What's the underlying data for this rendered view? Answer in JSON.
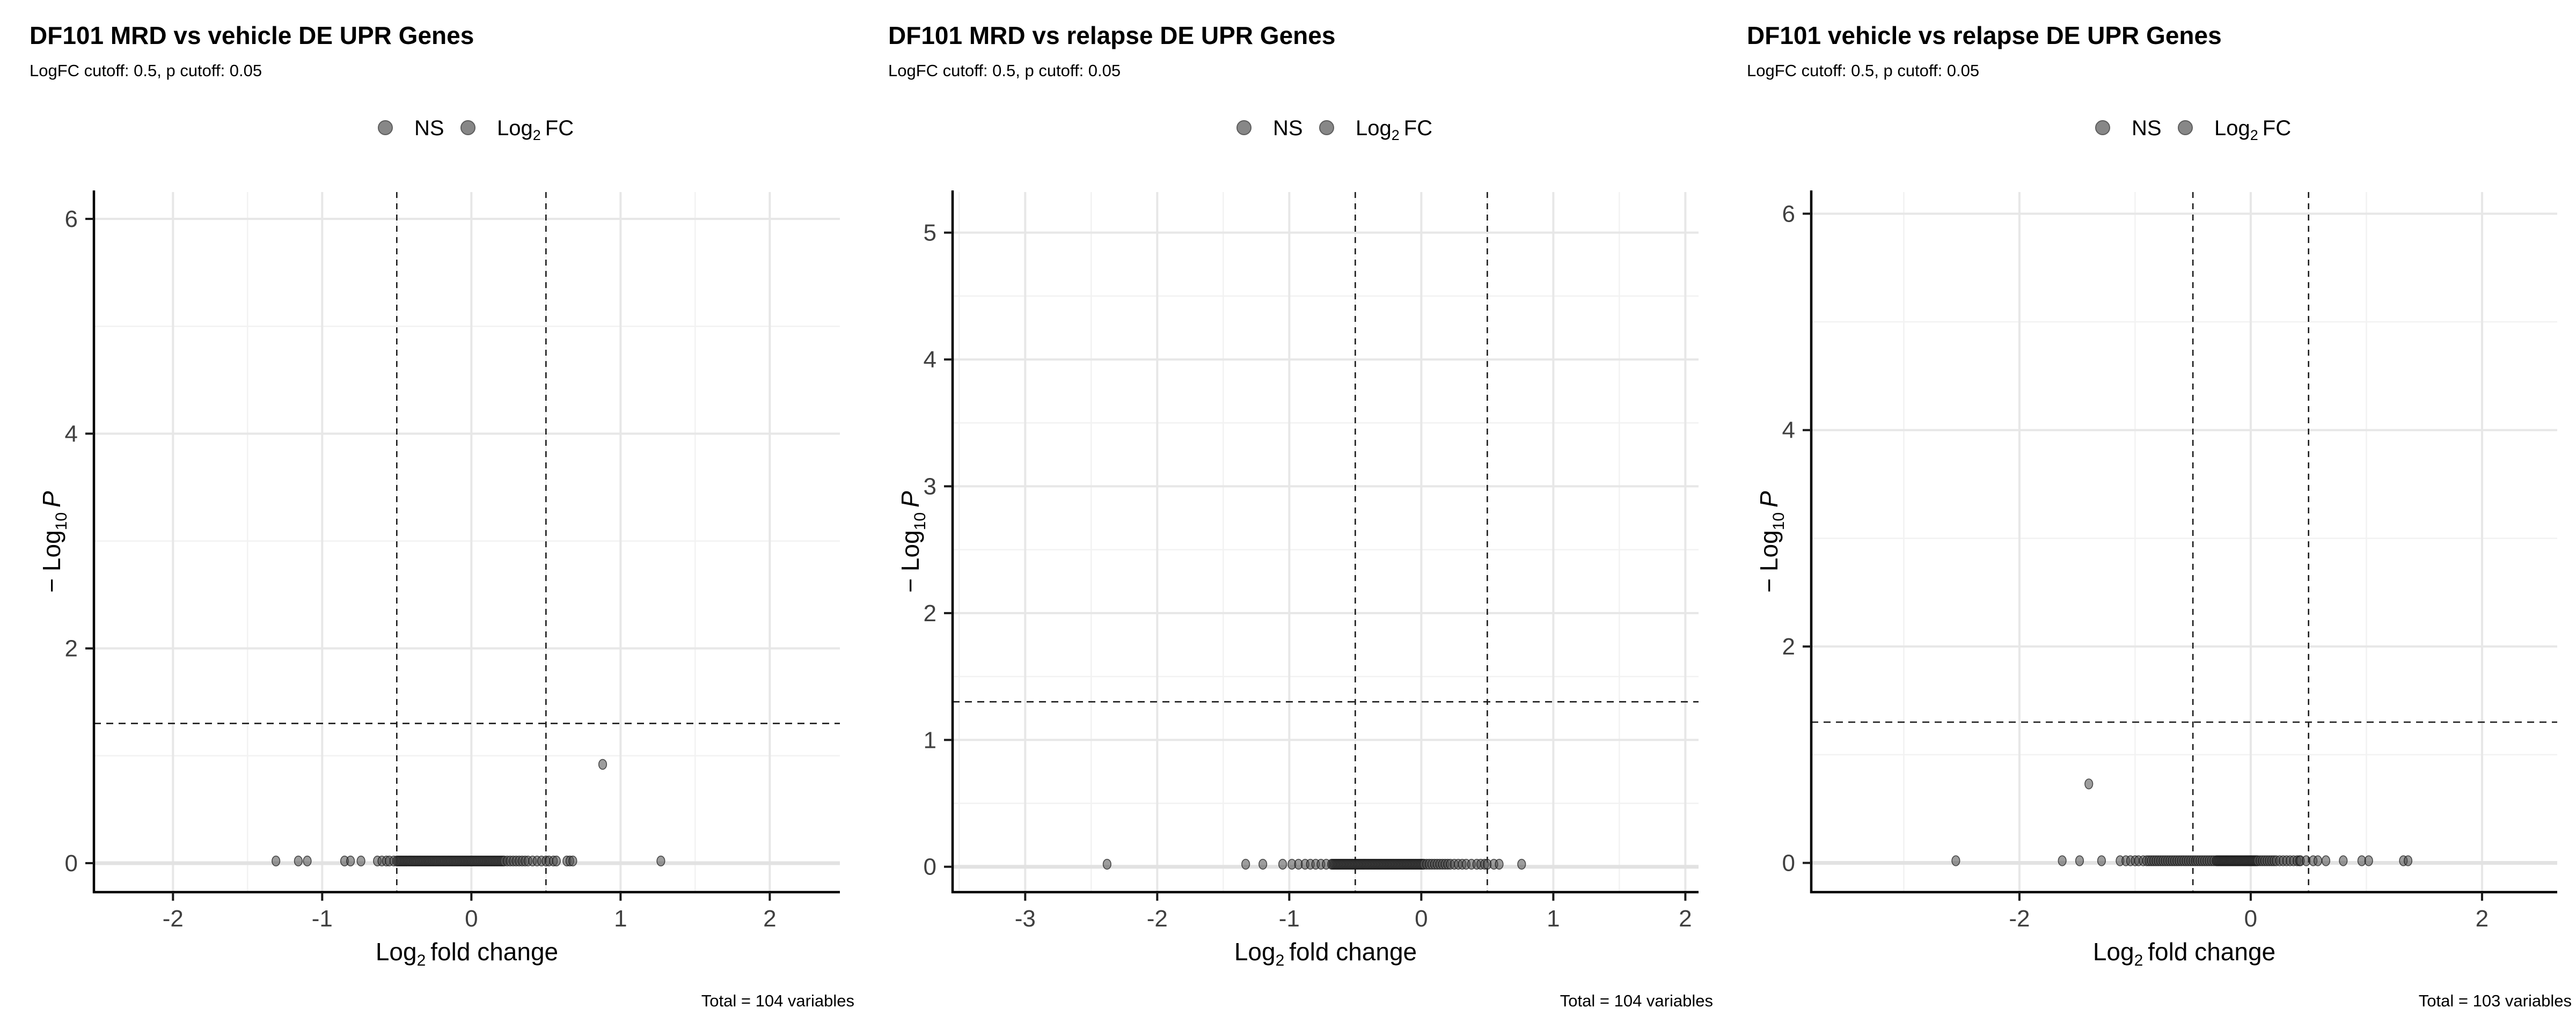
{
  "figure": {
    "background": "#ffffff"
  },
  "colors": {
    "point_fill": "#4d4d4d",
    "point_stroke": "#141414",
    "grid_major": "#e7e7e7",
    "grid_zero": "#e2e2e2",
    "grid_minor": "#f2f2f2",
    "axis_line": "#000000",
    "tick_mark": "#1a1a1a",
    "tick_label": "#404040",
    "dashed_line": "#1a1a1a",
    "legend_dot_fill": "#878787",
    "legend_dot_stroke": "#5e5e5e"
  },
  "legend": {
    "ns": "NS",
    "fc_pre": "Log",
    "fc_sub": "2",
    "fc_post": "FC"
  },
  "axis_titles": {
    "x_pre": "Log",
    "x_sub": "2",
    "x_post": "fold change",
    "y_pre": "− Log",
    "y_sub": "10",
    "y_post": "P"
  },
  "chart_data": [
    {
      "type": "scatter",
      "title": "DF101 MRD vs vehicle DE UPR Genes",
      "subtitle": "LogFC cutoff: 0.5, p cutoff: 0.05",
      "caption": "Total = 104 variables",
      "xlabel": "Log2 fold change",
      "ylabel": "-Log10 P",
      "legend_entries": [
        "NS",
        "Log2 FC"
      ],
      "grid": true,
      "xlim": [
        -2.53,
        2.47
      ],
      "ylim": [
        -0.27,
        6.25
      ],
      "xticks": [
        -2,
        -1,
        0,
        1,
        2
      ],
      "xminor": [
        -1.5,
        -0.5,
        0.5,
        1.5
      ],
      "yticks": [
        0,
        2,
        4,
        6
      ],
      "yminor": [
        1,
        3,
        5
      ],
      "vlines": [
        -0.5,
        0.5
      ],
      "hline": 1.301,
      "points": [
        [
          -1.31,
          0.02
        ],
        [
          -1.16,
          0.02
        ],
        [
          -1.1,
          0.02
        ],
        [
          -0.85,
          0.02
        ],
        [
          -0.81,
          0.02
        ],
        [
          -0.74,
          0.02
        ],
        [
          -0.63,
          0.02
        ],
        [
          -0.6,
          0.02
        ],
        [
          -0.57,
          0.02
        ],
        [
          -0.55,
          0.02
        ],
        [
          -0.52,
          0.02
        ],
        [
          -0.5,
          0.02
        ],
        [
          -0.49,
          0.02
        ],
        [
          -0.48,
          0.02
        ],
        [
          -0.47,
          0.02
        ],
        [
          -0.46,
          0.02
        ],
        [
          -0.45,
          0.02
        ],
        [
          -0.44,
          0.02
        ],
        [
          -0.43,
          0.02
        ],
        [
          -0.42,
          0.02
        ],
        [
          -0.41,
          0.02
        ],
        [
          -0.4,
          0.02
        ],
        [
          -0.39,
          0.02
        ],
        [
          -0.38,
          0.02
        ],
        [
          -0.37,
          0.02
        ],
        [
          -0.36,
          0.02
        ],
        [
          -0.35,
          0.02
        ],
        [
          -0.34,
          0.02
        ],
        [
          -0.33,
          0.02
        ],
        [
          -0.32,
          0.02
        ],
        [
          -0.31,
          0.02
        ],
        [
          -0.3,
          0.02
        ],
        [
          -0.29,
          0.02
        ],
        [
          -0.28,
          0.02
        ],
        [
          -0.27,
          0.02
        ],
        [
          -0.26,
          0.02
        ],
        [
          -0.25,
          0.02
        ],
        [
          -0.24,
          0.02
        ],
        [
          -0.23,
          0.02
        ],
        [
          -0.22,
          0.02
        ],
        [
          -0.21,
          0.02
        ],
        [
          -0.2,
          0.02
        ],
        [
          -0.19,
          0.02
        ],
        [
          -0.18,
          0.02
        ],
        [
          -0.17,
          0.02
        ],
        [
          -0.16,
          0.02
        ],
        [
          -0.15,
          0.02
        ],
        [
          -0.14,
          0.02
        ],
        [
          -0.13,
          0.02
        ],
        [
          -0.12,
          0.02
        ],
        [
          -0.11,
          0.02
        ],
        [
          -0.1,
          0.02
        ],
        [
          -0.09,
          0.02
        ],
        [
          -0.08,
          0.02
        ],
        [
          -0.07,
          0.02
        ],
        [
          -0.06,
          0.02
        ],
        [
          -0.05,
          0.02
        ],
        [
          -0.04,
          0.02
        ],
        [
          -0.03,
          0.02
        ],
        [
          -0.02,
          0.02
        ],
        [
          -0.01,
          0.02
        ],
        [
          0.0,
          0.02
        ],
        [
          0.01,
          0.02
        ],
        [
          0.02,
          0.02
        ],
        [
          0.03,
          0.02
        ],
        [
          0.04,
          0.02
        ],
        [
          0.05,
          0.02
        ],
        [
          0.06,
          0.02
        ],
        [
          0.07,
          0.02
        ],
        [
          0.08,
          0.02
        ],
        [
          0.09,
          0.02
        ],
        [
          0.1,
          0.02
        ],
        [
          0.11,
          0.02
        ],
        [
          0.12,
          0.02
        ],
        [
          0.13,
          0.02
        ],
        [
          0.14,
          0.02
        ],
        [
          0.15,
          0.02
        ],
        [
          0.16,
          0.02
        ],
        [
          0.17,
          0.02
        ],
        [
          0.18,
          0.02
        ],
        [
          0.19,
          0.02
        ],
        [
          0.2,
          0.02
        ],
        [
          0.21,
          0.02
        ],
        [
          0.22,
          0.02
        ],
        [
          0.24,
          0.02
        ],
        [
          0.26,
          0.02
        ],
        [
          0.28,
          0.02
        ],
        [
          0.3,
          0.02
        ],
        [
          0.32,
          0.02
        ],
        [
          0.34,
          0.02
        ],
        [
          0.36,
          0.02
        ],
        [
          0.38,
          0.02
        ],
        [
          0.41,
          0.02
        ],
        [
          0.44,
          0.02
        ],
        [
          0.47,
          0.02
        ],
        [
          0.5,
          0.02
        ],
        [
          0.52,
          0.02
        ],
        [
          0.55,
          0.02
        ],
        [
          0.57,
          0.02
        ],
        [
          0.64,
          0.02
        ],
        [
          0.66,
          0.02
        ],
        [
          0.68,
          0.02
        ],
        [
          0.88,
          0.92
        ],
        [
          1.27,
          0.02
        ]
      ]
    },
    {
      "type": "scatter",
      "title": "DF101 MRD vs relapse DE UPR Genes",
      "subtitle": "LogFC cutoff: 0.5, p cutoff: 0.05",
      "caption": "Total = 104 variables",
      "xlabel": "Log2 fold change",
      "ylabel": "-Log10 P",
      "legend_entries": [
        "NS",
        "Log2 FC"
      ],
      "grid": true,
      "xlim": [
        -3.55,
        2.1
      ],
      "ylim": [
        -0.2,
        5.32
      ],
      "xticks": [
        -3,
        -2,
        -1,
        0,
        1,
        2
      ],
      "xminor": [
        -3.5,
        -2.5,
        -1.5,
        -0.5,
        0.5,
        1.5
      ],
      "yticks": [
        0,
        1,
        2,
        3,
        4,
        5
      ],
      "yminor": [
        0.5,
        1.5,
        2.5,
        3.5,
        4.5
      ],
      "vlines": [
        -0.5,
        0.5
      ],
      "hline": 1.301,
      "points": [
        [
          -2.38,
          0.02
        ],
        [
          -1.33,
          0.02
        ],
        [
          -1.2,
          0.02
        ],
        [
          -1.05,
          0.02
        ],
        [
          -0.98,
          0.02
        ],
        [
          -0.93,
          0.02
        ],
        [
          -0.88,
          0.02
        ],
        [
          -0.84,
          0.02
        ],
        [
          -0.8,
          0.02
        ],
        [
          -0.76,
          0.02
        ],
        [
          -0.72,
          0.02
        ],
        [
          -0.68,
          0.02
        ],
        [
          -0.67,
          0.02
        ],
        [
          -0.66,
          0.02
        ],
        [
          -0.65,
          0.02
        ],
        [
          -0.64,
          0.02
        ],
        [
          -0.63,
          0.02
        ],
        [
          -0.62,
          0.02
        ],
        [
          -0.61,
          0.02
        ],
        [
          -0.6,
          0.02
        ],
        [
          -0.59,
          0.02
        ],
        [
          -0.58,
          0.02
        ],
        [
          -0.57,
          0.02
        ],
        [
          -0.56,
          0.02
        ],
        [
          -0.55,
          0.02
        ],
        [
          -0.54,
          0.02
        ],
        [
          -0.53,
          0.02
        ],
        [
          -0.52,
          0.02
        ],
        [
          -0.51,
          0.02
        ],
        [
          -0.5,
          0.02
        ],
        [
          -0.49,
          0.02
        ],
        [
          -0.48,
          0.02
        ],
        [
          -0.47,
          0.02
        ],
        [
          -0.46,
          0.02
        ],
        [
          -0.45,
          0.02
        ],
        [
          -0.44,
          0.02
        ],
        [
          -0.43,
          0.02
        ],
        [
          -0.42,
          0.02
        ],
        [
          -0.41,
          0.02
        ],
        [
          -0.4,
          0.02
        ],
        [
          -0.39,
          0.02
        ],
        [
          -0.38,
          0.02
        ],
        [
          -0.37,
          0.02
        ],
        [
          -0.36,
          0.02
        ],
        [
          -0.35,
          0.02
        ],
        [
          -0.34,
          0.02
        ],
        [
          -0.33,
          0.02
        ],
        [
          -0.32,
          0.02
        ],
        [
          -0.31,
          0.02
        ],
        [
          -0.3,
          0.02
        ],
        [
          -0.29,
          0.02
        ],
        [
          -0.28,
          0.02
        ],
        [
          -0.27,
          0.02
        ],
        [
          -0.26,
          0.02
        ],
        [
          -0.25,
          0.02
        ],
        [
          -0.24,
          0.02
        ],
        [
          -0.23,
          0.02
        ],
        [
          -0.22,
          0.02
        ],
        [
          -0.21,
          0.02
        ],
        [
          -0.2,
          0.02
        ],
        [
          -0.19,
          0.02
        ],
        [
          -0.18,
          0.02
        ],
        [
          -0.17,
          0.02
        ],
        [
          -0.16,
          0.02
        ],
        [
          -0.15,
          0.02
        ],
        [
          -0.14,
          0.02
        ],
        [
          -0.13,
          0.02
        ],
        [
          -0.12,
          0.02
        ],
        [
          -0.11,
          0.02
        ],
        [
          -0.1,
          0.02
        ],
        [
          -0.09,
          0.02
        ],
        [
          -0.08,
          0.02
        ],
        [
          -0.07,
          0.02
        ],
        [
          -0.06,
          0.02
        ],
        [
          -0.05,
          0.02
        ],
        [
          -0.04,
          0.02
        ],
        [
          -0.03,
          0.02
        ],
        [
          -0.02,
          0.02
        ],
        [
          -0.01,
          0.02
        ],
        [
          0.0,
          0.02
        ],
        [
          0.01,
          0.02
        ],
        [
          0.02,
          0.02
        ],
        [
          0.04,
          0.02
        ],
        [
          0.06,
          0.02
        ],
        [
          0.08,
          0.02
        ],
        [
          0.1,
          0.02
        ],
        [
          0.12,
          0.02
        ],
        [
          0.14,
          0.02
        ],
        [
          0.16,
          0.02
        ],
        [
          0.18,
          0.02
        ],
        [
          0.2,
          0.02
        ],
        [
          0.22,
          0.02
        ],
        [
          0.25,
          0.02
        ],
        [
          0.28,
          0.02
        ],
        [
          0.31,
          0.02
        ],
        [
          0.34,
          0.02
        ],
        [
          0.38,
          0.02
        ],
        [
          0.42,
          0.02
        ],
        [
          0.45,
          0.02
        ],
        [
          0.48,
          0.02
        ],
        [
          0.5,
          0.02
        ],
        [
          0.55,
          0.02
        ],
        [
          0.59,
          0.02
        ],
        [
          0.76,
          0.02
        ]
      ]
    },
    {
      "type": "scatter",
      "title": "DF101 vehicle vs relapse DE UPR Genes",
      "subtitle": "LogFC cutoff: 0.5, p cutoff: 0.05",
      "caption": "Total = 103 variables",
      "xlabel": "Log2 fold change",
      "ylabel": "-Log10 P",
      "legend_entries": [
        "NS",
        "Log2 FC"
      ],
      "grid": true,
      "xlim": [
        -3.8,
        2.65
      ],
      "ylim": [
        -0.27,
        6.2
      ],
      "xticks": [
        -2,
        0,
        2
      ],
      "xminor": [
        -3,
        -1,
        1
      ],
      "yticks": [
        0,
        2,
        4,
        6
      ],
      "yminor": [
        1,
        3,
        5
      ],
      "vlines": [
        -0.5,
        0.5
      ],
      "hline": 1.301,
      "points": [
        [
          -2.55,
          0.02
        ],
        [
          -1.63,
          0.02
        ],
        [
          -1.48,
          0.02
        ],
        [
          -1.4,
          0.73
        ],
        [
          -1.29,
          0.02
        ],
        [
          -1.13,
          0.02
        ],
        [
          -1.08,
          0.02
        ],
        [
          -1.04,
          0.02
        ],
        [
          -1.0,
          0.02
        ],
        [
          -0.97,
          0.02
        ],
        [
          -0.93,
          0.02
        ],
        [
          -0.9,
          0.02
        ],
        [
          -0.88,
          0.02
        ],
        [
          -0.86,
          0.02
        ],
        [
          -0.84,
          0.02
        ],
        [
          -0.82,
          0.02
        ],
        [
          -0.8,
          0.02
        ],
        [
          -0.78,
          0.02
        ],
        [
          -0.76,
          0.02
        ],
        [
          -0.74,
          0.02
        ],
        [
          -0.72,
          0.02
        ],
        [
          -0.7,
          0.02
        ],
        [
          -0.68,
          0.02
        ],
        [
          -0.66,
          0.02
        ],
        [
          -0.64,
          0.02
        ],
        [
          -0.62,
          0.02
        ],
        [
          -0.6,
          0.02
        ],
        [
          -0.58,
          0.02
        ],
        [
          -0.56,
          0.02
        ],
        [
          -0.54,
          0.02
        ],
        [
          -0.52,
          0.02
        ],
        [
          -0.5,
          0.02
        ],
        [
          -0.48,
          0.02
        ],
        [
          -0.46,
          0.02
        ],
        [
          -0.44,
          0.02
        ],
        [
          -0.42,
          0.02
        ],
        [
          -0.4,
          0.02
        ],
        [
          -0.38,
          0.02
        ],
        [
          -0.36,
          0.02
        ],
        [
          -0.34,
          0.02
        ],
        [
          -0.32,
          0.02
        ],
        [
          -0.3,
          0.02
        ],
        [
          -0.29,
          0.02
        ],
        [
          -0.28,
          0.02
        ],
        [
          -0.27,
          0.02
        ],
        [
          -0.26,
          0.02
        ],
        [
          -0.25,
          0.02
        ],
        [
          -0.24,
          0.02
        ],
        [
          -0.23,
          0.02
        ],
        [
          -0.22,
          0.02
        ],
        [
          -0.21,
          0.02
        ],
        [
          -0.2,
          0.02
        ],
        [
          -0.19,
          0.02
        ],
        [
          -0.18,
          0.02
        ],
        [
          -0.17,
          0.02
        ],
        [
          -0.16,
          0.02
        ],
        [
          -0.15,
          0.02
        ],
        [
          -0.14,
          0.02
        ],
        [
          -0.13,
          0.02
        ],
        [
          -0.12,
          0.02
        ],
        [
          -0.11,
          0.02
        ],
        [
          -0.1,
          0.02
        ],
        [
          -0.09,
          0.02
        ],
        [
          -0.08,
          0.02
        ],
        [
          -0.07,
          0.02
        ],
        [
          -0.06,
          0.02
        ],
        [
          -0.05,
          0.02
        ],
        [
          -0.04,
          0.02
        ],
        [
          -0.03,
          0.02
        ],
        [
          -0.02,
          0.02
        ],
        [
          -0.01,
          0.02
        ],
        [
          0.0,
          0.02
        ],
        [
          0.01,
          0.02
        ],
        [
          0.02,
          0.02
        ],
        [
          0.03,
          0.02
        ],
        [
          0.04,
          0.02
        ],
        [
          0.05,
          0.02
        ],
        [
          0.06,
          0.02
        ],
        [
          0.08,
          0.02
        ],
        [
          0.1,
          0.02
        ],
        [
          0.12,
          0.02
        ],
        [
          0.14,
          0.02
        ],
        [
          0.16,
          0.02
        ],
        [
          0.18,
          0.02
        ],
        [
          0.2,
          0.02
        ],
        [
          0.22,
          0.02
        ],
        [
          0.25,
          0.02
        ],
        [
          0.28,
          0.02
        ],
        [
          0.31,
          0.02
        ],
        [
          0.34,
          0.02
        ],
        [
          0.37,
          0.02
        ],
        [
          0.4,
          0.02
        ],
        [
          0.42,
          0.02
        ],
        [
          0.43,
          0.02
        ],
        [
          0.48,
          0.02
        ],
        [
          0.54,
          0.02
        ],
        [
          0.58,
          0.02
        ],
        [
          0.65,
          0.02
        ],
        [
          0.8,
          0.02
        ],
        [
          0.96,
          0.02
        ],
        [
          1.02,
          0.02
        ],
        [
          1.32,
          0.02
        ],
        [
          1.36,
          0.02
        ]
      ]
    }
  ]
}
